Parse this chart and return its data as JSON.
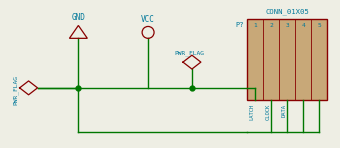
{
  "bg_color": "#eeeee4",
  "wire_color": "#007700",
  "symbol_color": "#880000",
  "text_color": "#007799",
  "connector_border": "#880000",
  "connector_fill": "#c8a878",
  "gnd_label": "GND",
  "vcc_label": "VCC",
  "pwr_flag_left_label": "PWR_FLAG",
  "pwr_flag_right_label": "PWR_FLAG",
  "conn_label": "CONN_01X05",
  "conn_ref": "P?",
  "conn_pins": [
    "1",
    "2",
    "3",
    "4",
    "5"
  ],
  "conn_pin_labels": [
    "LATCH",
    "CLOCK",
    "DATA",
    "",
    ""
  ]
}
